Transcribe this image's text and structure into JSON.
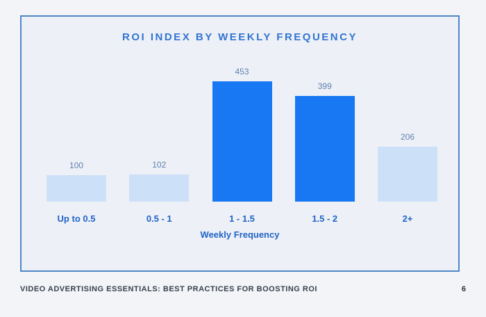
{
  "page": {
    "background": "#f2f4f8",
    "footer": {
      "title": "VIDEO ADVERTISING ESSENTIALS: BEST PRACTICES FOR BOOSTING ROI",
      "page_number": "6"
    }
  },
  "card": {
    "background": "#edf1f7",
    "border_color": "#4f86c5"
  },
  "chart_data": {
    "type": "bar",
    "title": "ROI INDEX BY WEEKLY FREQUENCY",
    "xlabel": "Weekly Frequency",
    "ylabel": "",
    "categories": [
      "Up to 0.5",
      "0.5 - 1",
      "1 - 1.5",
      "1.5 - 2",
      "2+"
    ],
    "values": [
      100,
      102,
      453,
      399,
      206
    ],
    "emphasis": [
      false,
      false,
      true,
      true,
      false
    ],
    "value_labels": true,
    "ylim": [
      0,
      453
    ],
    "grid": false,
    "legend": false,
    "colors": {
      "bar_emphasis": "#1877f2",
      "bar_muted": "#cce0f8",
      "value_label": "#5f7fae",
      "category_label": "#2063c6",
      "title": "#3273d2"
    }
  }
}
